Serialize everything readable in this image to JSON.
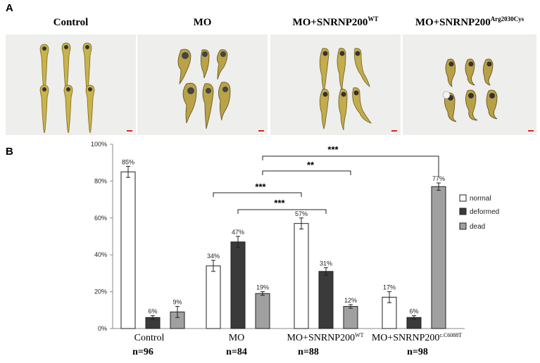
{
  "panel_a": {
    "label": "A",
    "titles": [
      "Control",
      "MO",
      "MO+SNRNP200",
      "MO+SNRNP200"
    ],
    "title_sups": [
      "",
      "",
      "WT",
      "Arg2030Cys"
    ],
    "embryo_counts": [
      6,
      6,
      6,
      6
    ],
    "images": [
      "zebrafish-control-embryos",
      "zebrafish-mo-embryos",
      "zebrafish-mo-snrnp200-wt-embryos",
      "zebrafish-mo-snrnp200-arg2030cys-embryos"
    ]
  },
  "panel_b": {
    "label": "B"
  },
  "chart_data": {
    "type": "bar",
    "categories": [
      "Control",
      "MO",
      "MO+SNRNP200",
      "MO+SNRNP200"
    ],
    "category_sups": [
      "",
      "",
      "WT",
      "c.C6088T"
    ],
    "sample_sizes": [
      "n=96",
      "n=84",
      "n=88",
      "n=98"
    ],
    "series": [
      {
        "name": "normal",
        "color": "#ffffff",
        "values": [
          85,
          34,
          57,
          17
        ],
        "errors": [
          3,
          3,
          3,
          3
        ],
        "labels": [
          "85%",
          "34%",
          "57%",
          "17%"
        ]
      },
      {
        "name": "deformed",
        "color": "#3a3a3a",
        "values": [
          6,
          47,
          31,
          6
        ],
        "errors": [
          1,
          3,
          2,
          1
        ],
        "labels": [
          "6%",
          "47%",
          "31%",
          "6%"
        ]
      },
      {
        "name": "dead",
        "color": "#a0a0a0",
        "values": [
          9,
          19,
          12,
          77
        ],
        "errors": [
          3,
          1,
          1,
          2
        ],
        "labels": [
          "9%",
          "19%",
          "12%",
          "77%"
        ]
      }
    ],
    "ylim": [
      0,
      100
    ],
    "yticks": [
      0,
      20,
      40,
      60,
      80,
      100
    ],
    "ytick_labels": [
      "0%",
      "20%",
      "40%",
      "60%",
      "80%",
      "100%"
    ],
    "legend_position": "right",
    "significance": [
      {
        "from": "MO normal",
        "to": "MO+SNRNP200WT normal",
        "label": "***"
      },
      {
        "from": "MO deformed",
        "to": "MO+SNRNP200WT deformed",
        "label": "***"
      },
      {
        "from": "MO dead",
        "to": "MO+SNRNP200WT dead",
        "label": "**"
      },
      {
        "from": "MO dead",
        "to": "MO+SNRNP200c.C6088T dead",
        "label": "***"
      }
    ]
  }
}
